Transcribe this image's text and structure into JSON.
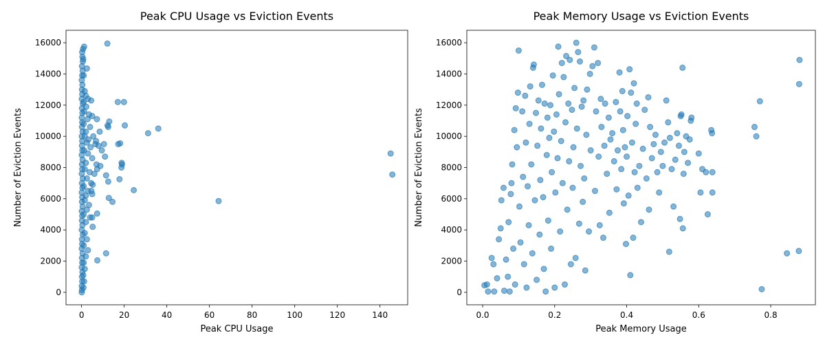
{
  "chart_data": [
    {
      "type": "scatter",
      "title": "Peak CPU Usage vs Eviction Events",
      "xlabel": "Peak CPU Usage",
      "ylabel": "Number of Eviction Events",
      "xlim": [
        -7.3,
        153
      ],
      "ylim": [
        -800,
        16800
      ],
      "xticks": [
        0,
        20,
        40,
        60,
        80,
        100,
        120,
        140
      ],
      "yticks": [
        0,
        2000,
        4000,
        6000,
        8000,
        10000,
        12000,
        14000,
        16000
      ],
      "grid": false,
      "color": "#1f77b4",
      "points": [
        [
          0.1,
          0
        ],
        [
          0.2,
          150
        ],
        [
          0.1,
          400
        ],
        [
          0.3,
          700
        ],
        [
          0.2,
          1000
        ],
        [
          0.4,
          1300
        ],
        [
          0.1,
          1600
        ],
        [
          0.3,
          1900
        ],
        [
          0.2,
          2200
        ],
        [
          0.5,
          2500
        ],
        [
          0.1,
          2800
        ],
        [
          0.3,
          3100
        ],
        [
          0.2,
          3400
        ],
        [
          0.6,
          3700
        ],
        [
          0.1,
          4000
        ],
        [
          0.4,
          4300
        ],
        [
          0.2,
          4600
        ],
        [
          0.3,
          4900
        ],
        [
          0.1,
          5200
        ],
        [
          0.5,
          5500
        ],
        [
          0.2,
          5800
        ],
        [
          0.3,
          6100
        ],
        [
          0.1,
          6400
        ],
        [
          0.4,
          6700
        ],
        [
          0.2,
          7000
        ],
        [
          0.6,
          7300
        ],
        [
          0.1,
          7600
        ],
        [
          0.3,
          7900
        ],
        [
          0.2,
          8200
        ],
        [
          0.5,
          8500
        ],
        [
          0.1,
          8800
        ],
        [
          0.4,
          9100
        ],
        [
          0.2,
          9400
        ],
        [
          0.3,
          9700
        ],
        [
          0.1,
          10000
        ],
        [
          0.5,
          10300
        ],
        [
          0.2,
          10600
        ],
        [
          0.3,
          10900
        ],
        [
          0.1,
          11200
        ],
        [
          0.4,
          11500
        ],
        [
          0.2,
          11800
        ],
        [
          0.6,
          12100
        ],
        [
          0.1,
          12400
        ],
        [
          0.3,
          12700
        ],
        [
          0.2,
          13000
        ],
        [
          0.4,
          13300
        ],
        [
          0.1,
          13600
        ],
        [
          0.3,
          13900
        ],
        [
          0.5,
          14200
        ],
        [
          0.2,
          14500
        ],
        [
          0.6,
          14800
        ],
        [
          0.4,
          15100
        ],
        [
          0.3,
          15400
        ],
        [
          0.7,
          15600
        ],
        [
          1.2,
          15750
        ],
        [
          0.8,
          14950
        ],
        [
          1.0,
          13900
        ],
        [
          2.5,
          14350
        ],
        [
          1.5,
          12900
        ],
        [
          2.0,
          12600
        ],
        [
          3.0,
          12400
        ],
        [
          1.0,
          12200
        ],
        [
          4.5,
          12300
        ],
        [
          2.2,
          11900
        ],
        [
          1.2,
          11600
        ],
        [
          3.5,
          11400
        ],
        [
          2.8,
          11100
        ],
        [
          1.0,
          10800
        ],
        [
          4.0,
          10600
        ],
        [
          2.0,
          10300
        ],
        [
          1.5,
          10000
        ],
        [
          3.2,
          9800
        ],
        [
          5.5,
          10000
        ],
        [
          2.5,
          9600
        ],
        [
          6.5,
          9500
        ],
        [
          4.2,
          9300
        ],
        [
          1.2,
          9100
        ],
        [
          8.0,
          9400
        ],
        [
          9.5,
          9100
        ],
        [
          3.0,
          8900
        ],
        [
          5.0,
          8600
        ],
        [
          2.0,
          8300
        ],
        [
          7.0,
          8200
        ],
        [
          1.5,
          7900
        ],
        [
          3.8,
          7700
        ],
        [
          6.0,
          7600
        ],
        [
          2.5,
          7300
        ],
        [
          4.5,
          7000
        ],
        [
          1.0,
          6800
        ],
        [
          3.0,
          6500
        ],
        [
          2.0,
          6200
        ],
        [
          5.0,
          6300
        ],
        [
          1.5,
          5900
        ],
        [
          3.5,
          5600
        ],
        [
          2.5,
          5300
        ],
        [
          1.0,
          5000
        ],
        [
          4.0,
          4800
        ],
        [
          2.0,
          4500
        ],
        [
          5.2,
          4200
        ],
        [
          1.5,
          3800
        ],
        [
          2.5,
          3400
        ],
        [
          1.0,
          3000
        ],
        [
          3.0,
          2700
        ],
        [
          2.0,
          2300
        ],
        [
          1.0,
          1900
        ],
        [
          1.5,
          1500
        ],
        [
          0.8,
          1100
        ],
        [
          1.2,
          700
        ],
        [
          0.9,
          300
        ],
        [
          5.0,
          11300
        ],
        [
          7.2,
          11100
        ],
        [
          6.8,
          9700
        ],
        [
          8.5,
          10300
        ],
        [
          10.5,
          9500
        ],
        [
          11.0,
          8700
        ],
        [
          8.8,
          8100
        ],
        [
          7.3,
          7900
        ],
        [
          11.5,
          7500
        ],
        [
          12.5,
          7100
        ],
        [
          5.2,
          6900
        ],
        [
          4.6,
          6500
        ],
        [
          12.8,
          6050
        ],
        [
          14.5,
          5800
        ],
        [
          7.3,
          5050
        ],
        [
          5.0,
          4800
        ],
        [
          7.4,
          2050
        ],
        [
          11.5,
          2500
        ],
        [
          12.2,
          10700
        ],
        [
          12.5,
          10600
        ],
        [
          13.0,
          10950
        ],
        [
          12.1,
          15950
        ],
        [
          17.0,
          12200
        ],
        [
          19.9,
          12200
        ],
        [
          20.3,
          10700
        ],
        [
          17.2,
          9500
        ],
        [
          18.1,
          9550
        ],
        [
          18.8,
          8300
        ],
        [
          19.0,
          8200
        ],
        [
          18.7,
          8000
        ],
        [
          17.8,
          7250
        ],
        [
          24.5,
          6550
        ],
        [
          31.2,
          10200
        ],
        [
          36.0,
          10500
        ],
        [
          64.3,
          5850
        ],
        [
          145.0,
          8900
        ],
        [
          145.8,
          7550
        ]
      ]
    },
    {
      "type": "scatter",
      "title": "Peak Memory Usage vs Eviction Events",
      "xlabel": "Peak Memory Usage",
      "ylabel": "Number of Eviction Events",
      "xlim": [
        -0.044,
        0.924
      ],
      "ylim": [
        -800,
        16800
      ],
      "xticks": [
        0.0,
        0.2,
        0.4,
        0.6,
        0.8
      ],
      "yticks": [
        0,
        2000,
        4000,
        6000,
        8000,
        10000,
        12000,
        14000,
        16000
      ],
      "grid": false,
      "color": "#1f77b4",
      "points": [
        [
          0.005,
          450
        ],
        [
          0.012,
          500
        ],
        [
          0.015,
          50
        ],
        [
          0.025,
          2200
        ],
        [
          0.03,
          1800
        ],
        [
          0.032,
          50
        ],
        [
          0.04,
          900
        ],
        [
          0.045,
          3400
        ],
        [
          0.05,
          4100
        ],
        [
          0.052,
          5900
        ],
        [
          0.058,
          6700
        ],
        [
          0.06,
          100
        ],
        [
          0.065,
          2100
        ],
        [
          0.07,
          1000
        ],
        [
          0.072,
          4500
        ],
        [
          0.075,
          50
        ],
        [
          0.078,
          6300
        ],
        [
          0.08,
          7000
        ],
        [
          0.082,
          8200
        ],
        [
          0.085,
          2800
        ],
        [
          0.088,
          10400
        ],
        [
          0.09,
          500
        ],
        [
          0.092,
          11800
        ],
        [
          0.095,
          9300
        ],
        [
          0.098,
          12800
        ],
        [
          0.1,
          15500
        ],
        [
          0.102,
          5500
        ],
        [
          0.105,
          3200
        ],
        [
          0.11,
          11600
        ],
        [
          0.112,
          7400
        ],
        [
          0.115,
          1800
        ],
        [
          0.118,
          12600
        ],
        [
          0.12,
          9600
        ],
        [
          0.122,
          300
        ],
        [
          0.125,
          6800
        ],
        [
          0.128,
          4300
        ],
        [
          0.13,
          10800
        ],
        [
          0.132,
          13200
        ],
        [
          0.135,
          8200
        ],
        [
          0.138,
          2500
        ],
        [
          0.14,
          14400
        ],
        [
          0.142,
          14600
        ],
        [
          0.145,
          5900
        ],
        [
          0.148,
          11500
        ],
        [
          0.15,
          800
        ],
        [
          0.152,
          9400
        ],
        [
          0.155,
          12300
        ],
        [
          0.158,
          3700
        ],
        [
          0.16,
          7200
        ],
        [
          0.162,
          10500
        ],
        [
          0.165,
          13300
        ],
        [
          0.168,
          6100
        ],
        [
          0.17,
          1500
        ],
        [
          0.172,
          12100
        ],
        [
          0.175,
          50
        ],
        [
          0.178,
          8800
        ],
        [
          0.18,
          11200
        ],
        [
          0.182,
          4600
        ],
        [
          0.185,
          9900
        ],
        [
          0.188,
          12000
        ],
        [
          0.19,
          2800
        ],
        [
          0.192,
          7700
        ],
        [
          0.195,
          13900
        ],
        [
          0.198,
          10300
        ],
        [
          0.2,
          300
        ],
        [
          0.202,
          6400
        ],
        [
          0.205,
          11400
        ],
        [
          0.208,
          8600
        ],
        [
          0.21,
          15750
        ],
        [
          0.212,
          12700
        ],
        [
          0.215,
          3900
        ],
        [
          0.218,
          9700
        ],
        [
          0.22,
          14700
        ],
        [
          0.222,
          7000
        ],
        [
          0.225,
          13800
        ],
        [
          0.228,
          500
        ],
        [
          0.23,
          10900
        ],
        [
          0.232,
          15150
        ],
        [
          0.235,
          5300
        ],
        [
          0.238,
          12100
        ],
        [
          0.24,
          8400
        ],
        [
          0.242,
          14900
        ],
        [
          0.245,
          1800
        ],
        [
          0.248,
          11700
        ],
        [
          0.25,
          6700
        ],
        [
          0.252,
          9300
        ],
        [
          0.255,
          13100
        ],
        [
          0.258,
          2200
        ],
        [
          0.26,
          16000
        ],
        [
          0.262,
          10500
        ],
        [
          0.265,
          15400
        ],
        [
          0.268,
          4400
        ],
        [
          0.27,
          14800
        ],
        [
          0.272,
          8100
        ],
        [
          0.275,
          11900
        ],
        [
          0.278,
          5800
        ],
        [
          0.28,
          12300
        ],
        [
          0.282,
          7300
        ],
        [
          0.285,
          1400
        ],
        [
          0.288,
          10100
        ],
        [
          0.29,
          13000
        ],
        [
          0.295,
          3900
        ],
        [
          0.298,
          14000
        ],
        [
          0.3,
          9100
        ],
        [
          0.305,
          14500
        ],
        [
          0.31,
          15700
        ],
        [
          0.312,
          6500
        ],
        [
          0.315,
          11600
        ],
        [
          0.32,
          14700
        ],
        [
          0.322,
          8700
        ],
        [
          0.325,
          4300
        ],
        [
          0.328,
          12400
        ],
        [
          0.33,
          10600
        ],
        [
          0.335,
          3500
        ],
        [
          0.338,
          9400
        ],
        [
          0.34,
          12100
        ],
        [
          0.345,
          7600
        ],
        [
          0.35,
          11200
        ],
        [
          0.352,
          5100
        ],
        [
          0.355,
          9800
        ],
        [
          0.36,
          10200
        ],
        [
          0.365,
          8400
        ],
        [
          0.37,
          12200
        ],
        [
          0.372,
          6600
        ],
        [
          0.375,
          9100
        ],
        [
          0.38,
          14100
        ],
        [
          0.382,
          11600
        ],
        [
          0.385,
          7900
        ],
        [
          0.388,
          12900
        ],
        [
          0.39,
          10400
        ],
        [
          0.392,
          5700
        ],
        [
          0.395,
          9300
        ],
        [
          0.398,
          3100
        ],
        [
          0.4,
          8700
        ],
        [
          0.402,
          11300
        ],
        [
          0.405,
          6200
        ],
        [
          0.408,
          14300
        ],
        [
          0.41,
          1100
        ],
        [
          0.412,
          12800
        ],
        [
          0.415,
          9600
        ],
        [
          0.418,
          3500
        ],
        [
          0.42,
          13400
        ],
        [
          0.422,
          7700
        ],
        [
          0.425,
          10800
        ],
        [
          0.428,
          12100
        ],
        [
          0.43,
          6700
        ],
        [
          0.435,
          8100
        ],
        [
          0.44,
          4500
        ],
        [
          0.445,
          9200
        ],
        [
          0.45,
          11700
        ],
        [
          0.455,
          7300
        ],
        [
          0.46,
          12500
        ],
        [
          0.462,
          5300
        ],
        [
          0.465,
          10600
        ],
        [
          0.47,
          8600
        ],
        [
          0.475,
          9500
        ],
        [
          0.48,
          10100
        ],
        [
          0.485,
          7700
        ],
        [
          0.49,
          6400
        ],
        [
          0.495,
          9000
        ],
        [
          0.5,
          8100
        ],
        [
          0.505,
          9600
        ],
        [
          0.51,
          12300
        ],
        [
          0.515,
          10900
        ],
        [
          0.518,
          2600
        ],
        [
          0.52,
          9900
        ],
        [
          0.525,
          7900
        ],
        [
          0.53,
          5500
        ],
        [
          0.535,
          8500
        ],
        [
          0.54,
          10200
        ],
        [
          0.545,
          9400
        ],
        [
          0.548,
          4700
        ],
        [
          0.55,
          11300
        ],
        [
          0.552,
          11400
        ],
        [
          0.555,
          14400
        ],
        [
          0.556,
          4100
        ],
        [
          0.558,
          7600
        ],
        [
          0.56,
          9000
        ],
        [
          0.565,
          10000
        ],
        [
          0.57,
          8300
        ],
        [
          0.575,
          9800
        ],
        [
          0.578,
          11000
        ],
        [
          0.58,
          11200
        ],
        [
          0.6,
          8900
        ],
        [
          0.605,
          6400
        ],
        [
          0.61,
          7900
        ],
        [
          0.62,
          7700
        ],
        [
          0.625,
          5000
        ],
        [
          0.635,
          10400
        ],
        [
          0.637,
          10200
        ],
        [
          0.638,
          6400
        ],
        [
          0.638,
          7700
        ],
        [
          0.755,
          10600
        ],
        [
          0.76,
          10000
        ],
        [
          0.77,
          12250
        ],
        [
          0.775,
          200
        ],
        [
          0.845,
          2500
        ],
        [
          0.878,
          2650
        ],
        [
          0.879,
          13350
        ],
        [
          0.88,
          14900
        ]
      ]
    }
  ]
}
